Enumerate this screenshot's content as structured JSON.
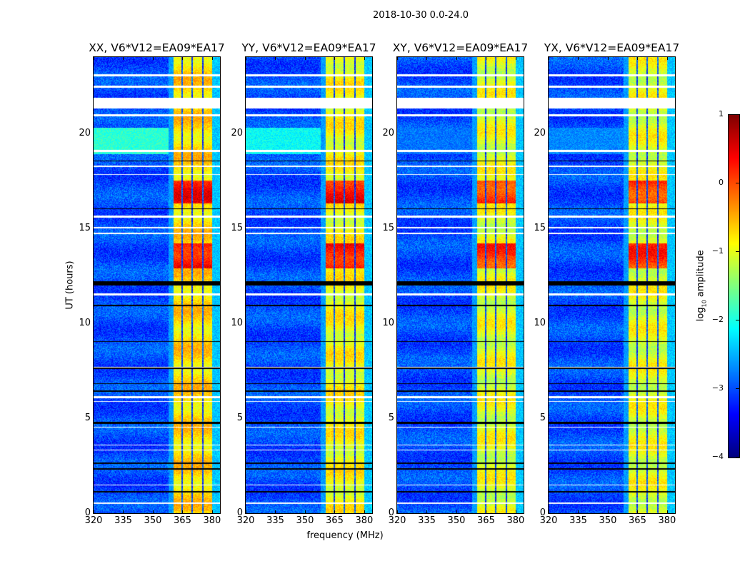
{
  "suptitle": "2018-10-30 0.0-24.0",
  "colors": {
    "flagged": "#ffffff",
    "zero": "#000000",
    "colormap": "jet"
  },
  "chart_data": {
    "type": "heatmap",
    "title": "2018-10-30 0.0-24.0",
    "xlabel": "frequency (MHz)",
    "ylabel": "UT (hours)",
    "xlim": [
      320,
      384
    ],
    "ylim": [
      0,
      24
    ],
    "xticks": [
      "320",
      "335",
      "350",
      "365",
      "380"
    ],
    "xtick_values": [
      320,
      335,
      350,
      365,
      380
    ],
    "yticks": [
      "0",
      "5",
      "10",
      "15",
      "20"
    ],
    "ytick_values": [
      0,
      5,
      10,
      15,
      20
    ],
    "colorbar": {
      "label": "log10 amplitude",
      "label_main": "log",
      "label_sub": "10",
      "label_rest": " amplitude",
      "range": [
        -4,
        1
      ],
      "ticks": [
        "1",
        "0",
        "−1",
        "−2",
        "−3",
        "−4"
      ],
      "tick_values": [
        1,
        0,
        -1,
        -2,
        -3,
        -4
      ]
    },
    "background_level": -3.0,
    "band_segments_mhz": [
      [
        360.4,
        364.5
      ],
      [
        365.1,
        369.6
      ],
      [
        370.2,
        375.0
      ],
      [
        375.6,
        380.0
      ]
    ],
    "band_edge_mhz": [
      380.0,
      384.0
    ],
    "bright_hours": [
      [
        12.9,
        14.2
      ],
      [
        16.3,
        17.5
      ]
    ],
    "flagged_hours": [
      [
        21.3,
        21.85
      ],
      [
        23.0,
        23.1
      ],
      [
        22.4,
        22.5
      ],
      [
        20.9,
        21.0
      ],
      [
        19.0,
        19.1
      ],
      [
        18.2,
        18.3
      ],
      [
        17.8,
        17.85
      ],
      [
        15.55,
        15.65
      ],
      [
        15.0,
        15.05
      ],
      [
        14.7,
        14.75
      ],
      [
        11.45,
        11.55
      ],
      [
        7.65,
        7.7
      ],
      [
        6.05,
        6.15
      ],
      [
        5.85,
        5.9
      ],
      [
        4.5,
        4.55
      ],
      [
        3.55,
        3.6
      ],
      [
        3.3,
        3.35
      ],
      [
        1.45,
        1.5
      ],
      [
        0.5,
        0.55
      ]
    ],
    "zero_hours": [
      [
        12.0,
        12.2
      ],
      [
        10.9,
        10.95
      ],
      [
        9.0,
        9.05
      ],
      [
        7.6,
        7.65
      ],
      [
        6.8,
        6.85
      ],
      [
        6.4,
        6.45
      ],
      [
        4.7,
        4.8
      ],
      [
        2.6,
        2.65
      ],
      [
        2.3,
        2.35
      ],
      [
        1.1,
        1.15
      ],
      [
        18.5,
        18.55
      ],
      [
        16.0,
        16.05
      ]
    ],
    "panels": [
      {
        "title": "XX, V6*V12=EA09*EA17",
        "band_level": -0.7,
        "bright_level": 0.3,
        "cyan_patch_hours": [
          18.9,
          20.3
        ],
        "cyan_patch_level": -1.9
      },
      {
        "title": "YY, V6*V12=EA09*EA17",
        "band_level": -0.9,
        "bright_level": 0.3,
        "cyan_patch_hours": [
          18.9,
          20.3
        ],
        "cyan_patch_level": -2.1
      },
      {
        "title": "XY, V6*V12=EA09*EA17",
        "band_level": -1.0,
        "bright_level": 0.1,
        "cyan_patch_hours": [
          18.9,
          20.3
        ],
        "cyan_patch_level": -2.8
      },
      {
        "title": "YX, V6*V12=EA09*EA17",
        "band_level": -1.0,
        "bright_level": 0.1,
        "cyan_patch_hours": [
          18.9,
          20.3
        ],
        "cyan_patch_level": -2.7
      }
    ]
  }
}
